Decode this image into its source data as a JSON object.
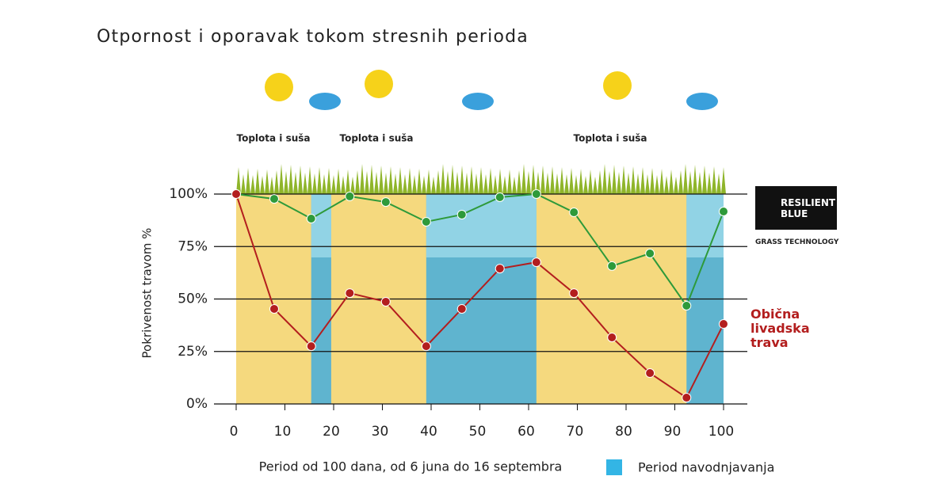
{
  "chart_data": {
    "type": "line",
    "title": "Otpornost i oporavak tokom stresnih perioda",
    "x_label": "Period od 100 dana, od 6 juna do 16 septembra",
    "y_label": "Pokrivenost travom %",
    "annotations": [
      "Toplota i suša",
      "Toplota i suša",
      "Toplota i suša"
    ],
    "irrigation_label": "Period navodnjavanja",
    "irrigation_color": "#33b5e5",
    "irrigation_periods": [
      [
        15.4,
        19.5
      ],
      [
        39,
        61.6
      ],
      [
        92.4,
        100
      ]
    ],
    "logo_subtitle": "GRASS TECHNOLOGY",
    "x": [
      0,
      7.8,
      15.4,
      23.3,
      30.7,
      39,
      46.3,
      54.1,
      61.6,
      69.3,
      77.1,
      84.9,
      92.4,
      100
    ],
    "series": [
      {
        "name": "RESILIENT BLUE",
        "color": "#2e9a3a",
        "values": [
          100,
          97.7,
          88.3,
          98.9,
          96.2,
          86.8,
          90.2,
          98.5,
          100,
          91.3,
          65.7,
          71.7,
          46.8,
          91.7
        ]
      },
      {
        "name": "Obična livadska trava",
        "color": "#b31e1e",
        "values": [
          100,
          45.3,
          27.5,
          52.8,
          48.7,
          27.5,
          45.3,
          64.5,
          67.5,
          52.8,
          31.7,
          14.7,
          3,
          38.1
        ]
      }
    ],
    "xlim": [
      0,
      100
    ],
    "xticks": [
      0,
      10,
      20,
      30,
      40,
      50,
      60,
      70,
      80,
      90,
      100
    ],
    "ylim": [
      0,
      100
    ],
    "yticks": [
      {
        "value": 0,
        "label": "0%"
      },
      {
        "value": 25,
        "label": "25%"
      },
      {
        "value": 50,
        "label": "50%"
      },
      {
        "value": 75,
        "label": "75%"
      },
      {
        "value": 100,
        "label": "100%"
      }
    ],
    "grid": true
  }
}
